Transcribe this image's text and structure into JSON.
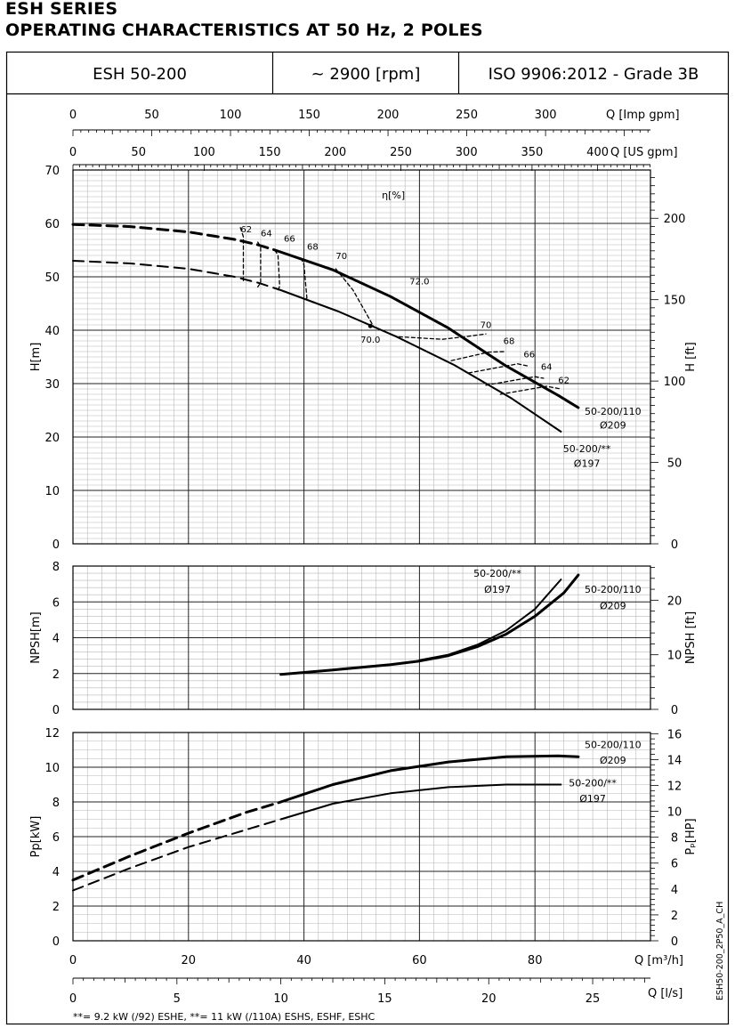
{
  "header": {
    "series": "ESH SERIES",
    "subtitle": "OPERATING CHARACTERISTICS AT 50 Hz, 2 POLES",
    "model": "ESH 50-200",
    "speed": "~ 2900 [rpm]",
    "standard": "ISO 9906:2012 - Grade 3B"
  },
  "footnote": "**= 9.2 kW (/92) ESHE,  **= 11 kW (/110A) ESHS, ESHF, ESHC",
  "drawing_code": "ESH50-200_2P50_A_CH",
  "chart_data": {
    "type": "line",
    "q_axis": {
      "label": "Q [m³/h]",
      "range": [
        0,
        100
      ],
      "ticks": [
        "0",
        "20",
        "40",
        "60",
        "80"
      ]
    },
    "imp_axis": {
      "label": "Q [Imp gpm]",
      "range": [
        0,
        366.6
      ],
      "ticks": [
        "0",
        "50",
        "100",
        "150",
        "200",
        "250",
        "300"
      ]
    },
    "us_axis": {
      "label": "Q [US gpm]",
      "range": [
        0,
        440.3
      ],
      "ticks": [
        "0",
        "50",
        "100",
        "150",
        "200",
        "250",
        "300",
        "350",
        "400"
      ]
    },
    "ls_axis": {
      "label": "Q [l/s]",
      "range": [
        0,
        27.78
      ],
      "ticks": [
        "0",
        "5",
        "10",
        "15",
        "20",
        "25"
      ]
    },
    "head": {
      "ylabel": "H[m]",
      "ylim": [
        0,
        70
      ],
      "yticks": [
        "0",
        "10",
        "20",
        "30",
        "40",
        "50",
        "60",
        "70"
      ],
      "ylabel_right": "H [ft]",
      "ylim_right": [
        0,
        229.66
      ],
      "yticks_right": [
        "0",
        "50",
        "100",
        "150",
        "200"
      ],
      "eff_label": "η[%]",
      "series": [
        {
          "name": "50-200/110",
          "name2": "Ø209",
          "dashed_x": [
            0,
            10,
            20,
            28,
            32,
            35
          ],
          "dashed_y": [
            59.8,
            59.4,
            58.4,
            57.0,
            56.0,
            55.0
          ],
          "solid_x": [
            35,
            45,
            55,
            65,
            75,
            84,
            87.5
          ],
          "solid_y": [
            55.0,
            51.3,
            46.3,
            40.4,
            33.3,
            27.8,
            25.5
          ]
        },
        {
          "name": "50-200/**",
          "name2": "Ø197",
          "dashed_x": [
            0,
            10,
            20,
            28,
            32,
            36
          ],
          "dashed_y": [
            53.0,
            52.5,
            51.5,
            50.0,
            48.9,
            47.5
          ],
          "solid_x": [
            36,
            46,
            56,
            66,
            76,
            84.5
          ],
          "solid_y": [
            47.5,
            43.5,
            38.8,
            33.5,
            27.2,
            21.0
          ]
        }
      ],
      "eff_labels": [
        {
          "x": 30.0,
          "y": 58.3,
          "text": "62"
        },
        {
          "x": 33.5,
          "y": 57.6,
          "text": "64"
        },
        {
          "x": 37.5,
          "y": 56.6,
          "text": "66"
        },
        {
          "x": 41.5,
          "y": 55.1,
          "text": "68"
        },
        {
          "x": 46.5,
          "y": 53.3,
          "text": "70"
        },
        {
          "x": 60.0,
          "y": 48.6,
          "text": "72.0"
        },
        {
          "x": 51.5,
          "y": 37.7,
          "text": "70.0"
        },
        {
          "x": 71.5,
          "y": 40.4,
          "text": "70"
        },
        {
          "x": 75.5,
          "y": 37.4,
          "text": "68"
        },
        {
          "x": 79.0,
          "y": 34.9,
          "text": "66"
        },
        {
          "x": 82.0,
          "y": 32.6,
          "text": "64"
        },
        {
          "x": 85.0,
          "y": 30.1,
          "text": "62"
        }
      ],
      "eff_lines": [
        {
          "x": [
            29.0,
            29.5,
            29.5
          ],
          "y": [
            59.2,
            57.5,
            49.2
          ]
        },
        {
          "x": [
            32.0,
            32.5,
            32.5,
            32.0
          ],
          "y": [
            56.5,
            55.6,
            48.9,
            48.1
          ]
        },
        {
          "x": [
            35.0,
            35.5,
            35.8,
            35.5
          ],
          "y": [
            55.0,
            54.0,
            48.3,
            47.3
          ]
        },
        {
          "x": [
            39.5,
            40.0,
            40.5,
            40.5
          ],
          "y": [
            53.5,
            52.2,
            46.2,
            45.5
          ]
        },
        {
          "x": [
            45.5,
            48.5,
            52.0
          ],
          "y": [
            51.5,
            47.5,
            40.8
          ]
        },
        {
          "x": [
            51.5,
            56.0,
            64.0,
            68.0,
            71.5
          ],
          "y": [
            41.0,
            38.8,
            38.3,
            38.8,
            39.3
          ]
        },
        {
          "x": [
            65.5,
            72.0,
            75.0
          ],
          "y": [
            34.3,
            35.9,
            36.0
          ]
        },
        {
          "x": [
            68.5,
            77.0,
            78.8
          ],
          "y": [
            32.0,
            33.7,
            33.3
          ]
        },
        {
          "x": [
            71.5,
            80.0,
            81.5
          ],
          "y": [
            29.7,
            31.3,
            31.0
          ]
        },
        {
          "x": [
            74.0,
            82.0,
            84.5
          ],
          "y": [
            28.0,
            29.5,
            29.0
          ]
        }
      ],
      "curve_labels": [
        {
          "x": 93.5,
          "y": 24.2,
          "text": "50-200/110",
          "ref": "head.series.0.name"
        },
        {
          "x": 93.5,
          "y": 21.6,
          "text": "Ø209",
          "ref": "head.series.0.name2"
        },
        {
          "x": 89.0,
          "y": 17.2,
          "text": "50-200/**",
          "ref": "head.series.1.name"
        },
        {
          "x": 89.0,
          "y": 14.4,
          "text": "Ø197",
          "ref": "head.series.1.name2"
        }
      ]
    },
    "npsh": {
      "ylabel": "NPSH[m]",
      "ylim": [
        0,
        8
      ],
      "yticks": [
        "0",
        "2",
        "4",
        "6",
        "8"
      ],
      "ylabel_right": "NPSH [ft]",
      "ylim_right": [
        0,
        26.25
      ],
      "yticks_right": [
        "0",
        "10",
        "20"
      ],
      "series": [
        {
          "name": "50-200/110",
          "name2": "Ø209",
          "x": [
            36,
            45,
            55,
            60,
            65,
            70,
            75,
            80,
            85,
            87.5
          ],
          "y": [
            1.95,
            2.2,
            2.5,
            2.7,
            3.0,
            3.5,
            4.2,
            5.2,
            6.5,
            7.5
          ]
        },
        {
          "name": "50-200/**",
          "name2": "Ø197",
          "x": [
            60,
            65,
            70,
            75,
            80,
            84.5
          ],
          "y": [
            2.75,
            3.05,
            3.6,
            4.4,
            5.6,
            7.25
          ]
        }
      ],
      "curve_labels": [
        {
          "x": 73.5,
          "y": 7.4,
          "text": "50-200/**",
          "ref": "npsh.series.1.name"
        },
        {
          "x": 73.5,
          "y": 6.5,
          "text": "Ø197",
          "ref": "npsh.series.1.name2"
        },
        {
          "x": 93.5,
          "y": 6.5,
          "text": "50-200/110",
          "ref": "npsh.series.0.name"
        },
        {
          "x": 93.5,
          "y": 5.6,
          "text": "Ø209",
          "ref": "npsh.series.0.name2"
        }
      ]
    },
    "power": {
      "ylabel": "Pp[kW]",
      "ylim": [
        0,
        12
      ],
      "yticks": [
        "0",
        "2",
        "4",
        "6",
        "8",
        "10",
        "12"
      ],
      "ylabel_right": "Pₚ[HP]",
      "ylim_right": [
        0,
        16.09
      ],
      "yticks_right": [
        "0",
        "2",
        "4",
        "6",
        "8",
        "10",
        "12",
        "14",
        "16"
      ],
      "series": [
        {
          "name": "50-200/110",
          "name2": "Ø209",
          "dashed_x": [
            0,
            10,
            20,
            30,
            36
          ],
          "dashed_y": [
            3.5,
            4.9,
            6.2,
            7.4,
            8.0
          ],
          "solid_x": [
            36,
            45,
            55,
            65,
            75,
            84,
            87.5
          ],
          "solid_y": [
            8.0,
            9.0,
            9.8,
            10.3,
            10.6,
            10.65,
            10.6
          ]
        },
        {
          "name": "50-200/**",
          "name2": "Ø197",
          "dashed_x": [
            0,
            10,
            20,
            30,
            36
          ],
          "dashed_y": [
            2.9,
            4.2,
            5.4,
            6.4,
            7.0
          ],
          "solid_x": [
            36,
            45,
            55,
            65,
            75,
            84.5
          ],
          "solid_y": [
            7.0,
            7.9,
            8.5,
            8.85,
            9.0,
            9.0
          ]
        }
      ],
      "curve_labels": [
        {
          "x": 93.5,
          "y": 11.1,
          "text": "50-200/110",
          "ref": "power.series.0.name"
        },
        {
          "x": 93.5,
          "y": 10.2,
          "text": "Ø209",
          "ref": "power.series.0.name2"
        },
        {
          "x": 90.0,
          "y": 8.9,
          "text": "50-200/**",
          "ref": "power.series.1.name"
        },
        {
          "x": 90.0,
          "y": 8.0,
          "text": "Ø197",
          "ref": "power.series.1.name2"
        }
      ]
    }
  }
}
